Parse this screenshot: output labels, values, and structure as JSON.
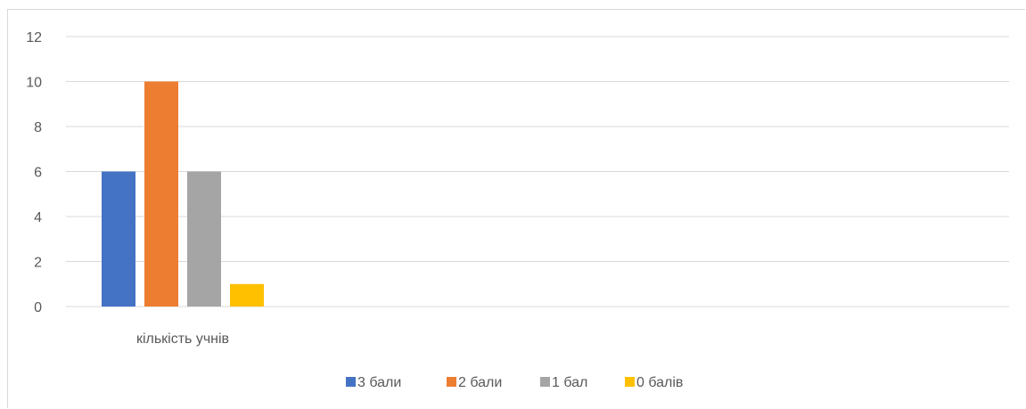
{
  "chart_data": {
    "type": "bar",
    "categories": [
      "кількість учнів"
    ],
    "series": [
      {
        "name": "3 бали",
        "values": [
          6
        ],
        "color": "#4472C4"
      },
      {
        "name": "2 бали",
        "values": [
          10
        ],
        "color": "#ED7D31"
      },
      {
        "name": "1 бал",
        "values": [
          6
        ],
        "color": "#A5A5A5"
      },
      {
        "name": "0 балів",
        "values": [
          1
        ],
        "color": "#FFC000"
      }
    ],
    "title": "",
    "xlabel": "",
    "ylabel": "",
    "ylim": [
      0,
      12
    ],
    "yticks": [
      "0",
      "2",
      "4",
      "6",
      "8",
      "10",
      "12"
    ],
    "grid": true,
    "legend_position": "bottom",
    "axis_label_color": "#595959",
    "gridline_color": "#d9d9d9"
  }
}
